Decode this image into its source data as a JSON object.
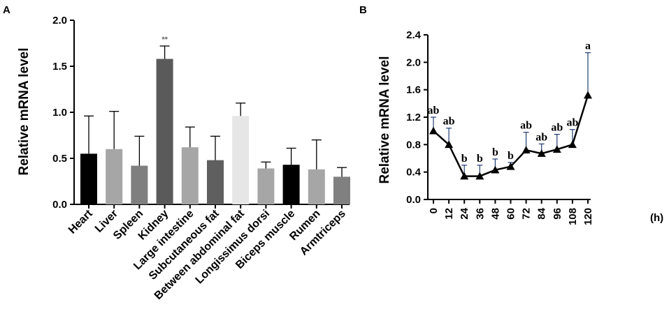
{
  "chart_data": [
    {
      "panel": "A",
      "type": "bar",
      "ylabel": "Relative mRNA level",
      "xlabel": "",
      "ylim": [
        0,
        2.0
      ],
      "yticks": [
        "0.0",
        "0.5",
        "1.0",
        "1.5",
        "2.0"
      ],
      "categories": [
        "Heart",
        "Liver",
        "Spleen",
        "Kidney",
        "Large intestine",
        "Subcutaneous fat",
        "Between abdominal fat",
        "Longissimus dorsi",
        "Biceps muscle",
        "Rumen",
        "Armtriceps"
      ],
      "values": [
        0.55,
        0.6,
        0.42,
        1.58,
        0.62,
        0.48,
        0.96,
        0.39,
        0.43,
        0.38,
        0.3
      ],
      "errors": [
        0.41,
        0.41,
        0.32,
        0.14,
        0.22,
        0.26,
        0.14,
        0.07,
        0.18,
        0.32,
        0.1
      ],
      "colors": [
        "#000000",
        "#a6a6a6",
        "#7f7f7f",
        "#5a5a5a",
        "#a6a6a6",
        "#5f5f5f",
        "#e6e6e6",
        "#a6a6a6",
        "#000000",
        "#a6a6a6",
        "#808080"
      ],
      "annotations": [
        {
          "category": "Kidney",
          "text": "**"
        }
      ]
    },
    {
      "panel": "B",
      "type": "line",
      "ylabel": "Relative mRNA level",
      "xunit": "(h)",
      "ylim": [
        0,
        2.4
      ],
      "yticks": [
        "0.0",
        "0.4",
        "0.8",
        "1.2",
        "1.6",
        "2.0",
        "2.4"
      ],
      "x": [
        "0",
        "12",
        "24",
        "36",
        "48",
        "60",
        "72",
        "84",
        "96",
        "108",
        "120"
      ],
      "values": [
        1.0,
        0.8,
        0.34,
        0.34,
        0.43,
        0.48,
        0.72,
        0.67,
        0.73,
        0.8,
        1.52
      ],
      "errors": [
        0.2,
        0.24,
        0.16,
        0.16,
        0.16,
        0.06,
        0.26,
        0.14,
        0.22,
        0.22,
        0.62
      ],
      "letters": [
        "ab",
        "ab",
        "b",
        "b",
        "b",
        "b",
        "ab",
        "ab",
        "ab",
        "ab",
        "a"
      ]
    }
  ]
}
